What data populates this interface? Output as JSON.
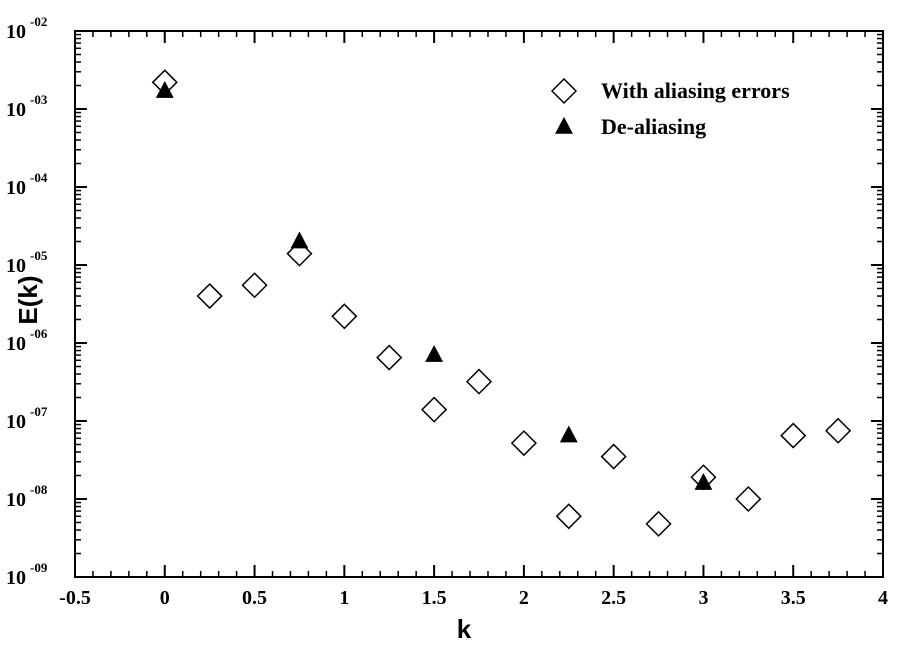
{
  "chart_data": {
    "type": "scatter",
    "xlabel": "k",
    "ylabel": "E(k)",
    "xlim": [
      -0.5,
      4
    ],
    "ylim": [
      1e-09,
      0.01
    ],
    "yscale": "log",
    "x_ticks": [
      "-0.5",
      "0",
      "0.5",
      "1",
      "1.5",
      "2",
      "2.5",
      "3",
      "3.5",
      "4"
    ],
    "y_ticks": [
      {
        "base": "10",
        "exp": "-09"
      },
      {
        "base": "10",
        "exp": "-08"
      },
      {
        "base": "10",
        "exp": "-07"
      },
      {
        "base": "10",
        "exp": "-06"
      },
      {
        "base": "10",
        "exp": "-05"
      },
      {
        "base": "10",
        "exp": "-04"
      },
      {
        "base": "10",
        "exp": "-03"
      },
      {
        "base": "10",
        "exp": "-02"
      }
    ],
    "legend_position": "top-right",
    "series": [
      {
        "name": "With aliasing errors",
        "marker": "diamond-open",
        "color": "#000000",
        "points": [
          [
            0,
            0.0022
          ],
          [
            0.25,
            4e-06
          ],
          [
            0.5,
            5.5e-06
          ],
          [
            0.75,
            1.4e-05
          ],
          [
            1,
            2.2e-06
          ],
          [
            1.25,
            6.5e-07
          ],
          [
            1.5,
            1.4e-07
          ],
          [
            1.75,
            3.2e-07
          ],
          [
            2,
            5.2e-08
          ],
          [
            2.25,
            6e-09
          ],
          [
            2.5,
            3.5e-08
          ],
          [
            2.75,
            4.8e-09
          ],
          [
            3,
            1.9e-08
          ],
          [
            3.25,
            1e-08
          ],
          [
            3.5,
            6.5e-08
          ],
          [
            3.75,
            7.5e-08
          ]
        ]
      },
      {
        "name": "De-aliasing",
        "marker": "triangle-filled",
        "color": "#000000",
        "points": [
          [
            0,
            0.0017
          ],
          [
            0.75,
            2e-05
          ],
          [
            1.5,
            7e-07
          ],
          [
            2.25,
            6.5e-08
          ],
          [
            3,
            1.6e-08
          ]
        ]
      }
    ]
  }
}
